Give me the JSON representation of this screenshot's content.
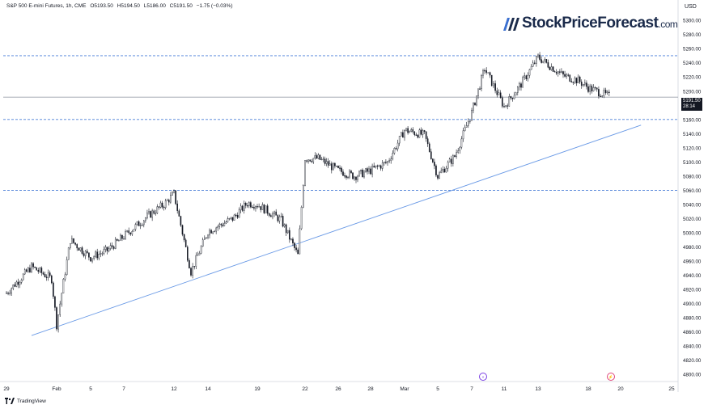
{
  "header": {
    "symbol": "S&P 500 E-mini Futures, 1h, CME",
    "open": "O5193.50",
    "high": "H5194.50",
    "low": "L5186.00",
    "close": "C5191.50",
    "change": "−1.75 (−0.03%)"
  },
  "currency": "USD",
  "logo": {
    "brand": "StockPriceForecast",
    "suffix": ".com"
  },
  "footer": {
    "brand": "TradingView"
  },
  "price_badge": {
    "price": "5191.50",
    "countdown": "28:14"
  },
  "colors": {
    "candle_up": "#131722",
    "candle_down": "#131722",
    "level_line": "#4a7fd8",
    "trend_line": "#6a9ae6",
    "price_line": "#9aa0ab",
    "price_badge_bg": "#131722",
    "event_icon": "#7b3fe4"
  },
  "chart_data": {
    "type": "candlestick",
    "title": "S&P 500 E-mini Futures, 1h, CME",
    "xlabel": "",
    "ylabel": "",
    "ylim": [
      4790,
      5315
    ],
    "y_ticks": [
      4800,
      4820,
      4840,
      4860,
      4880,
      4900,
      4920,
      4940,
      4960,
      4980,
      5000,
      5020,
      5040,
      5060,
      5080,
      5100,
      5120,
      5140,
      5160,
      5180,
      5200,
      5220,
      5240,
      5260,
      5280,
      5300
    ],
    "x_tick_labels": [
      "29",
      "Feb",
      "5",
      "7",
      "12",
      "14",
      "19",
      "22",
      "26",
      "28",
      "Mar",
      "5",
      "7",
      "11",
      "13",
      "18",
      "20",
      "25"
    ],
    "grid": false,
    "series": [
      {
        "name": "",
        "x": [
          "Jan 29",
          "Jan 30",
          "Jan 31",
          "Feb 1",
          "Feb 2",
          "Feb 5",
          "Feb 6",
          "Feb 7",
          "Feb 8",
          "Feb 9",
          "Feb 12",
          "Feb 13",
          "Feb 14",
          "Feb 15",
          "Feb 16",
          "Feb 19",
          "Feb 20",
          "Feb 21",
          "Feb 22",
          "Feb 23",
          "Feb 26",
          "Feb 27",
          "Feb 28",
          "Feb 29",
          "Mar 1",
          "Mar 4",
          "Mar 5",
          "Mar 6",
          "Mar 7",
          "Mar 8",
          "Mar 11",
          "Mar 12",
          "Mar 13",
          "Mar 14",
          "Mar 15",
          "Mar 18",
          "Mar 19"
        ],
        "close": [
          4915,
          4952,
          4935,
          4870,
          4990,
          4965,
          4975,
          4995,
          5025,
          5040,
          5055,
          4945,
          5002,
          5020,
          5042,
          5040,
          5018,
          4968,
          5105,
          5105,
          5088,
          5080,
          5088,
          5100,
          5145,
          5138,
          5080,
          5108,
          5170,
          5232,
          5178,
          5210,
          5248,
          5222,
          5215,
          5205,
          5191.5
        ]
      }
    ],
    "horizontal_levels": [
      5250,
      5160,
      5060
    ],
    "trend_line": {
      "from": {
        "x": "Jan 30",
        "y": 4855
      },
      "to": {
        "x": "Mar 22",
        "y": 5152
      }
    },
    "last_price": 5191.5
  }
}
